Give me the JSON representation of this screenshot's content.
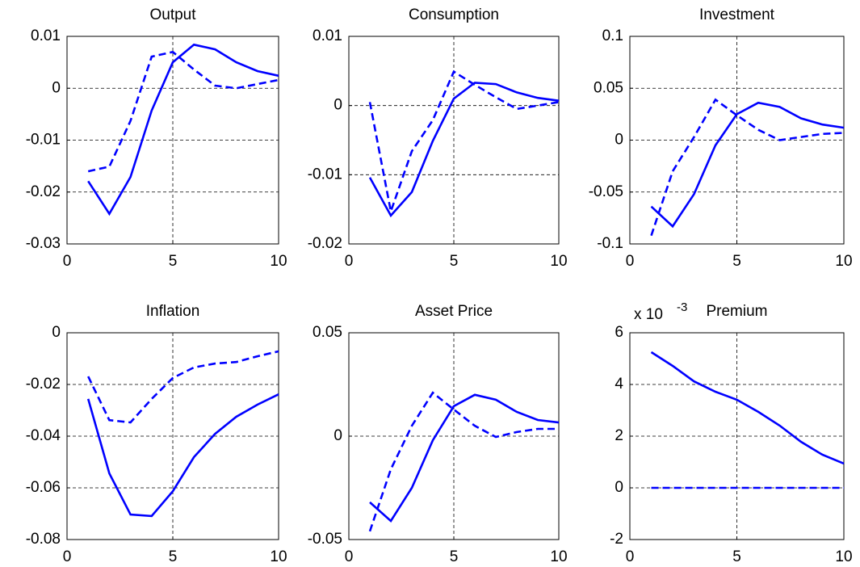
{
  "chart_data": [
    {
      "type": "line",
      "title": "Output",
      "x": [
        1,
        2,
        3,
        4,
        5,
        6,
        7,
        8,
        9,
        10
      ],
      "xlim": [
        0,
        10
      ],
      "xticks": [
        0,
        5,
        10
      ],
      "ylim": [
        -0.03,
        0.01
      ],
      "yticks": [
        -0.03,
        -0.02,
        -0.01,
        0,
        0.01
      ],
      "grid": true,
      "series": [
        {
          "color": "#0000ff",
          "style": "solid",
          "values": [
            -0.0179,
            -0.0242,
            -0.0171,
            -0.0043,
            0.005,
            0.0084,
            0.0075,
            0.005,
            0.0033,
            0.0024
          ]
        },
        {
          "color": "#0000ff",
          "style": "dashed",
          "values": [
            -0.016,
            -0.0151,
            -0.0063,
            0.0061,
            0.007,
            0.0036,
            0.0005,
            0.0,
            0.0008,
            0.0016
          ]
        }
      ]
    },
    {
      "type": "line",
      "title": "Consumption",
      "x": [
        1,
        2,
        3,
        4,
        5,
        6,
        7,
        8,
        9,
        10
      ],
      "xlim": [
        0,
        10
      ],
      "xticks": [
        0,
        5,
        10
      ],
      "ylim": [
        -0.02,
        0.01
      ],
      "yticks": [
        -0.02,
        -0.01,
        0,
        0.01
      ],
      "grid": true,
      "series": [
        {
          "color": "#0000ff",
          "style": "solid",
          "values": [
            -0.0104,
            -0.0159,
            -0.0125,
            -0.0051,
            0.001,
            0.0033,
            0.0031,
            0.0019,
            0.0011,
            0.0007
          ]
        },
        {
          "color": "#0000ff",
          "style": "dashed",
          "values": [
            0.0005,
            -0.0153,
            -0.0066,
            -0.0021,
            0.0049,
            0.003,
            0.0012,
            -0.0005,
            0.0,
            0.0005
          ]
        }
      ]
    },
    {
      "type": "line",
      "title": "Investment",
      "x": [
        1,
        2,
        3,
        4,
        5,
        6,
        7,
        8,
        9,
        10
      ],
      "xlim": [
        0,
        10
      ],
      "xticks": [
        0,
        5,
        10
      ],
      "ylim": [
        -0.1,
        0.1
      ],
      "yticks": [
        -0.1,
        -0.05,
        0,
        0.05,
        0.1
      ],
      "grid": true,
      "series": [
        {
          "color": "#0000ff",
          "style": "solid",
          "values": [
            -0.064,
            -0.083,
            -0.052,
            -0.005,
            0.025,
            0.036,
            0.032,
            0.021,
            0.015,
            0.012
          ]
        },
        {
          "color": "#0000ff",
          "style": "dashed",
          "values": [
            -0.092,
            -0.03,
            0.003,
            0.039,
            0.024,
            0.01,
            0.0,
            0.003,
            0.006,
            0.007
          ]
        }
      ]
    },
    {
      "type": "line",
      "title": "Inflation",
      "x": [
        1,
        2,
        3,
        4,
        5,
        6,
        7,
        8,
        9,
        10
      ],
      "xlim": [
        0,
        10
      ],
      "xticks": [
        0,
        5,
        10
      ],
      "ylim": [
        -0.08,
        0
      ],
      "yticks": [
        -0.08,
        -0.06,
        -0.04,
        -0.02,
        0
      ],
      "grid": true,
      "series": [
        {
          "color": "#0000ff",
          "style": "solid",
          "values": [
            -0.0256,
            -0.0544,
            -0.0703,
            -0.0709,
            -0.0613,
            -0.0481,
            -0.0391,
            -0.0325,
            -0.0278,
            -0.0238
          ]
        },
        {
          "color": "#0000ff",
          "style": "dashed",
          "values": [
            -0.0169,
            -0.0338,
            -0.0347,
            -0.0256,
            -0.0175,
            -0.0134,
            -0.0119,
            -0.0113,
            -0.0091,
            -0.0072
          ]
        }
      ]
    },
    {
      "type": "line",
      "title": "Asset Price",
      "x": [
        1,
        2,
        3,
        4,
        5,
        6,
        7,
        8,
        9,
        10
      ],
      "xlim": [
        0,
        10
      ],
      "xticks": [
        0,
        5,
        10
      ],
      "ylim": [
        -0.05,
        0.05
      ],
      "yticks": [
        -0.05,
        0,
        0.05
      ],
      "grid": true,
      "series": [
        {
          "color": "#0000ff",
          "style": "solid",
          "values": [
            -0.032,
            -0.041,
            -0.025,
            -0.002,
            0.0145,
            0.02,
            0.0176,
            0.0117,
            0.0078,
            0.0066
          ]
        },
        {
          "color": "#0000ff",
          "style": "dashed",
          "values": [
            -0.046,
            -0.016,
            0.005,
            0.021,
            0.0129,
            0.005,
            -0.0004,
            0.002,
            0.0035,
            0.0035
          ]
        }
      ]
    },
    {
      "type": "line",
      "title": "Premium",
      "y_multiplier": {
        "base": "x 10",
        "exponent": "-3"
      },
      "x": [
        1,
        2,
        3,
        4,
        5,
        6,
        7,
        8,
        9,
        10
      ],
      "xlim": [
        0,
        10
      ],
      "xticks": [
        0,
        5,
        10
      ],
      "ylim": [
        -2,
        6
      ],
      "yticks": [
        -2,
        0,
        2,
        4,
        6
      ],
      "grid": true,
      "series": [
        {
          "color": "#0000ff",
          "style": "solid",
          "values": [
            5.25,
            4.72,
            4.12,
            3.72,
            3.41,
            2.94,
            2.41,
            1.78,
            1.28,
            0.94
          ]
        },
        {
          "color": "#0000ff",
          "style": "dashed",
          "values": [
            0,
            0,
            0,
            0,
            0,
            0,
            0,
            0,
            0,
            0
          ]
        }
      ]
    }
  ]
}
